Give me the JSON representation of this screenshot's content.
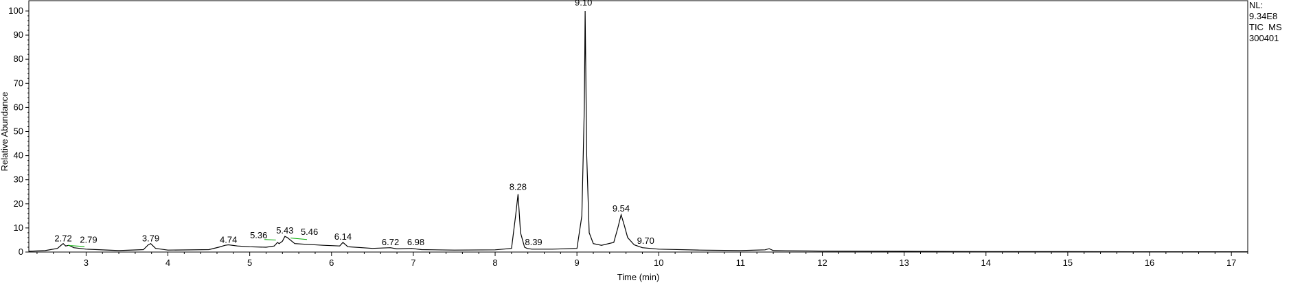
{
  "info": {
    "nl_label": "NL:",
    "nl_value": "9.34E8",
    "scan_filter": "TIC  MS",
    "file_id": "300401"
  },
  "chart_data": {
    "type": "line",
    "title": "",
    "xlabel": "Time (min)",
    "ylabel": "Relative Abundance",
    "xlim": [
      2.3,
      17.2
    ],
    "ylim": [
      0,
      100
    ],
    "x_ticks": [
      3,
      4,
      5,
      6,
      7,
      8,
      9,
      10,
      11,
      12,
      13,
      14,
      15,
      16,
      17
    ],
    "y_ticks": [
      0,
      10,
      20,
      30,
      40,
      50,
      60,
      70,
      80,
      90,
      100
    ],
    "grid": false,
    "line_color": "#000000",
    "baseline_color": "#00aa00",
    "series": [
      {
        "x": [
          2.3,
          2.5,
          2.65,
          2.7,
          2.72,
          2.75,
          2.79,
          2.85,
          3.0,
          3.4,
          3.7,
          3.76,
          3.79,
          3.85,
          4.0,
          4.5,
          4.62,
          4.7,
          4.74,
          4.85,
          5.0,
          5.2,
          5.3,
          5.34,
          5.36,
          5.4,
          5.43,
          5.46,
          5.55,
          5.7,
          5.9,
          6.1,
          6.14,
          6.2,
          6.5,
          6.72,
          6.8,
          6.98,
          7.1,
          7.5,
          8.0,
          8.2,
          8.25,
          8.28,
          8.31,
          8.36,
          8.39,
          8.45,
          8.7,
          9.0,
          9.06,
          9.09,
          9.1,
          9.12,
          9.15,
          9.2,
          9.3,
          9.45,
          9.5,
          9.54,
          9.58,
          9.62,
          9.7,
          9.8,
          10.0,
          10.5,
          11.0,
          11.3,
          11.35,
          11.4,
          12.0,
          13.0,
          14.0,
          15.0,
          16.0,
          17.2
        ],
        "y": [
          0.3,
          0.6,
          1.5,
          3.0,
          3.5,
          2.5,
          2.8,
          1.8,
          1.2,
          0.6,
          1.0,
          3.0,
          3.5,
          1.5,
          0.8,
          1.0,
          2.0,
          2.8,
          3.0,
          2.5,
          2.2,
          2.0,
          2.5,
          4.0,
          3.5,
          4.5,
          6.5,
          6.0,
          3.5,
          3.2,
          2.8,
          2.5,
          4.0,
          2.2,
          1.5,
          1.8,
          1.3,
          1.5,
          1.0,
          0.8,
          0.9,
          1.5,
          15.0,
          24.0,
          8.0,
          2.0,
          1.5,
          1.2,
          1.2,
          1.5,
          15.0,
          60.0,
          100.0,
          40.0,
          8.0,
          3.5,
          2.8,
          4.0,
          10.0,
          15.5,
          11.0,
          6.0,
          3.0,
          1.8,
          1.2,
          0.8,
          0.6,
          0.9,
          1.4,
          0.6,
          0.4,
          0.3,
          0.2,
          0.2,
          0.1,
          0.1
        ]
      }
    ],
    "peak_labels": [
      {
        "text": "2.72",
        "x": 2.72,
        "y": 3.5
      },
      {
        "text": "2.79",
        "x": 3.03,
        "y": 3.0
      },
      {
        "text": "3.79",
        "x": 3.79,
        "y": 3.5
      },
      {
        "text": "4.74",
        "x": 4.74,
        "y": 3.0
      },
      {
        "text": "5.36",
        "x": 5.11,
        "y": 4.8
      },
      {
        "text": "5.43",
        "x": 5.43,
        "y": 6.8
      },
      {
        "text": "5.46",
        "x": 5.73,
        "y": 6.3
      },
      {
        "text": "6.14",
        "x": 6.14,
        "y": 4.3
      },
      {
        "text": "6.72",
        "x": 6.72,
        "y": 2.0
      },
      {
        "text": "6.98",
        "x": 7.03,
        "y": 2.0
      },
      {
        "text": "8.28",
        "x": 8.28,
        "y": 25.0
      },
      {
        "text": "8.39",
        "x": 8.47,
        "y": 2.0
      },
      {
        "text": "9.10",
        "x": 9.08,
        "y": 101.5
      },
      {
        "text": "9.54",
        "x": 9.54,
        "y": 16.0
      },
      {
        "text": "9.70",
        "x": 9.84,
        "y": 2.5
      }
    ],
    "integration_baselines": [
      {
        "x1": 2.78,
        "y1": 2.7,
        "x2": 2.98,
        "y2": 2.3
      },
      {
        "x1": 5.18,
        "y1": 5.2,
        "x2": 5.32,
        "y2": 5.0
      },
      {
        "x1": 5.5,
        "y1": 5.8,
        "x2": 5.7,
        "y2": 5.2
      }
    ]
  }
}
